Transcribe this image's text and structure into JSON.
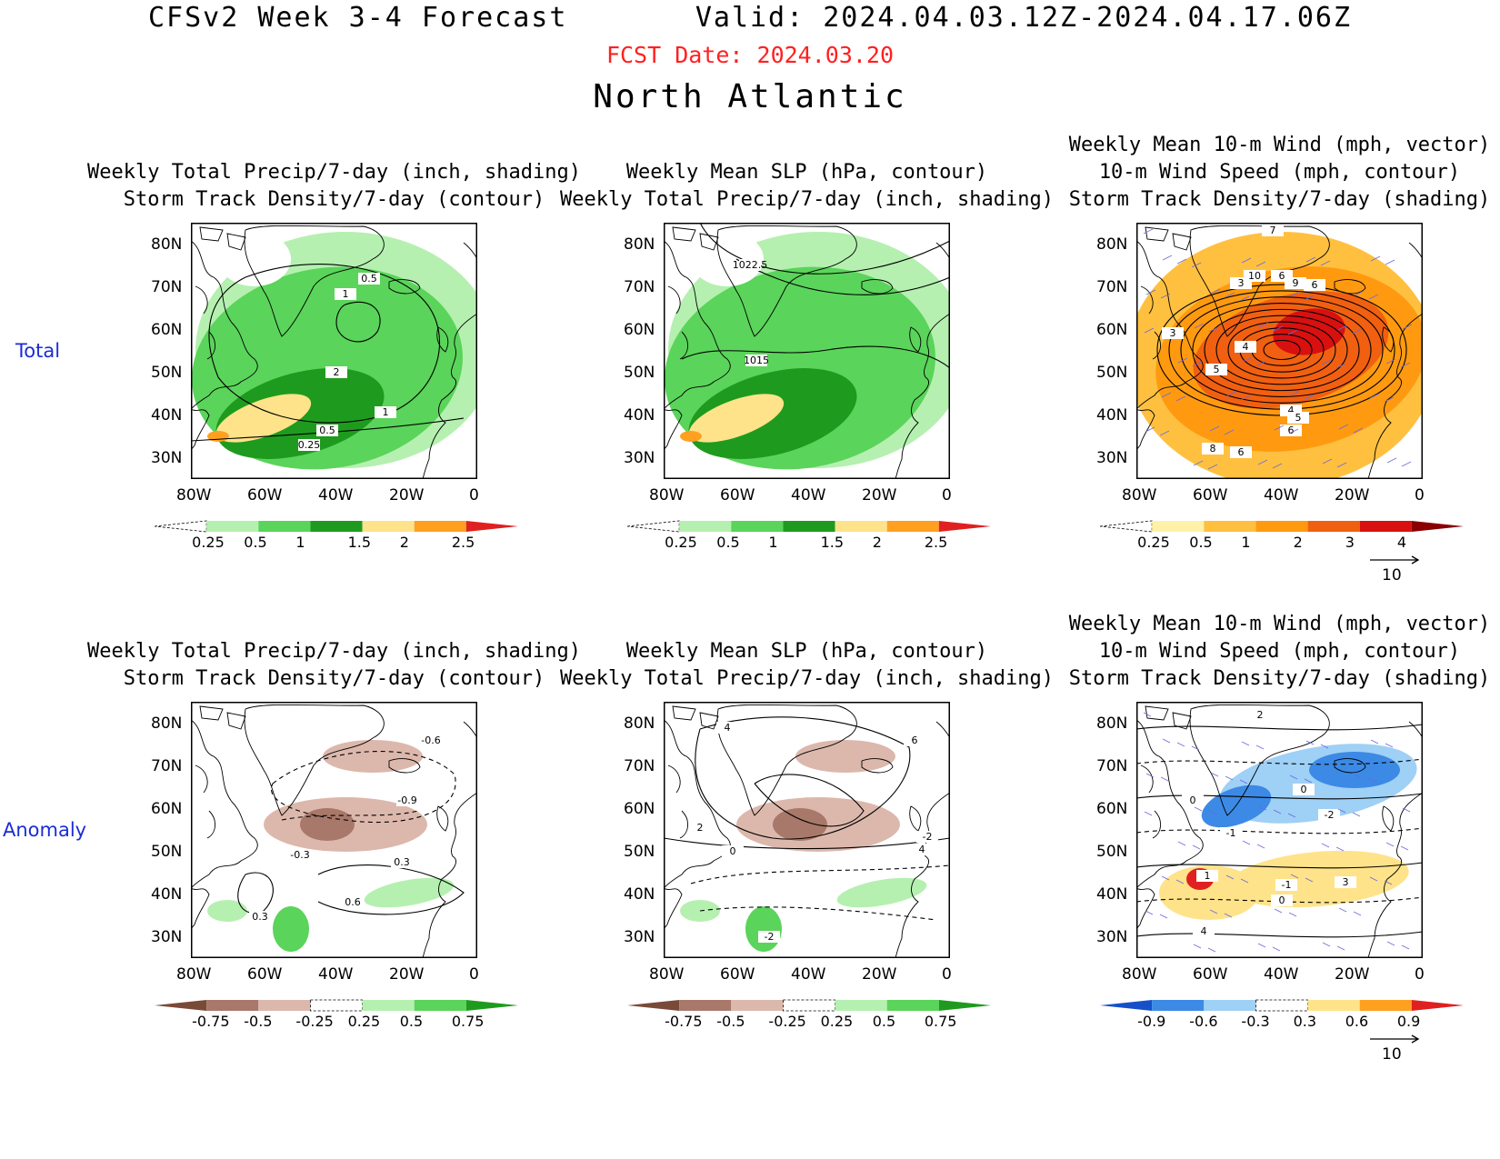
{
  "header": {
    "line1": "CFSv2 Week 3-4 Forecast       Valid: 2024.04.03.12Z-2024.04.17.06Z",
    "fcst_date": "FCST Date: 2024.03.20",
    "region": "North Atlantic"
  },
  "rows": [
    {
      "label": "Total"
    },
    {
      "label": "Anomaly"
    }
  ],
  "axes": {
    "lat_labels": [
      "80N",
      "70N",
      "60N",
      "50N",
      "40N",
      "30N"
    ],
    "lon_labels": [
      "80W",
      "60W",
      "40W",
      "20W",
      "0"
    ]
  },
  "panels": [
    {
      "id": "total-precip",
      "title_lines": [
        "Weekly Total Precip/7-day (inch, shading)",
        "Storm Track Density/7-day (contour)"
      ],
      "colorbar": {
        "labels": [
          "0.25",
          "0.5",
          "1",
          "1.5",
          "2",
          "2.5"
        ],
        "colors": [
          "#ffffff",
          "#b5f0b0",
          "#5ad45a",
          "#1e9b1e",
          "#ffe38a",
          "#ffa020",
          "#e02020"
        ]
      },
      "contour_labels": [
        "0.5",
        "1",
        "2",
        "1",
        "0.5",
        "0.25"
      ]
    },
    {
      "id": "total-slp",
      "title_lines": [
        "Weekly Mean SLP (hPa, contour)",
        "Weekly Total Precip/7-day (inch, shading)"
      ],
      "colorbar": {
        "labels": [
          "0.25",
          "0.5",
          "1",
          "1.5",
          "2",
          "2.5"
        ],
        "colors": [
          "#ffffff",
          "#b5f0b0",
          "#5ad45a",
          "#1e9b1e",
          "#ffe38a",
          "#ffa020",
          "#e02020"
        ]
      },
      "contour_labels": [
        "1022.5",
        "1015"
      ]
    },
    {
      "id": "total-wind",
      "title_lines": [
        "Weekly Mean 10-m Wind (mph, vector)",
        "10-m Wind Speed (mph, contour)",
        "Storm Track Density/7-day (shading)"
      ],
      "colorbar": {
        "labels": [
          "0.25",
          "0.5",
          "1",
          "2",
          "3",
          "4"
        ],
        "colors": [
          "#ffffff",
          "#fff2a8",
          "#ffc040",
          "#ff9a10",
          "#f06010",
          "#d81010",
          "#8a0000"
        ]
      },
      "contour_labels": [
        "7",
        "3",
        "10",
        "6",
        "9",
        "6",
        "3",
        "4",
        "5",
        "4",
        "5",
        "6",
        "8",
        "6"
      ],
      "vector_ref": "10"
    },
    {
      "id": "anom-precip",
      "title_lines": [
        "Weekly Total Precip/7-day (inch, shading)",
        "Storm Track Density/7-day (contour)"
      ],
      "colorbar": {
        "labels": [
          "-0.75",
          "-0.5",
          "-0.25",
          "0.25",
          "0.5",
          "0.75"
        ],
        "colors": [
          "#7a4a38",
          "#a8786a",
          "#dcb8ac",
          "#ffffff",
          "#b5f0b0",
          "#5ad45a",
          "#1e9b1e"
        ]
      },
      "contour_labels": [
        "-0.6",
        "-0.9",
        "-0.3",
        "0.3",
        "0.3",
        "0.6"
      ]
    },
    {
      "id": "anom-slp",
      "title_lines": [
        "Weekly Mean SLP (hPa, contour)",
        "Weekly Total Precip/7-day (inch, shading)"
      ],
      "colorbar": {
        "labels": [
          "-0.75",
          "-0.5",
          "-0.25",
          "0.25",
          "0.5",
          "0.75"
        ],
        "colors": [
          "#7a4a38",
          "#a8786a",
          "#dcb8ac",
          "#ffffff",
          "#b5f0b0",
          "#5ad45a",
          "#1e9b1e"
        ]
      },
      "contour_labels": [
        "4",
        "6",
        "2",
        "0",
        "-2",
        "4",
        "-2"
      ]
    },
    {
      "id": "anom-wind",
      "title_lines": [
        "Weekly Mean 10-m Wind (mph, vector)",
        "10-m Wind Speed (mph, contour)",
        "Storm Track Density/7-day (shading)"
      ],
      "colorbar": {
        "labels": [
          "-0.9",
          "-0.6",
          "-0.3",
          "0.3",
          "0.6",
          "0.9"
        ],
        "colors": [
          "#1550c8",
          "#3c8ae6",
          "#9fd0f5",
          "#ffffff",
          "#ffe38a",
          "#ffa020",
          "#e02020"
        ]
      },
      "contour_labels": [
        "2",
        "0",
        "0",
        "-2",
        "-1",
        "1",
        "3",
        "0",
        "-1",
        "4"
      ],
      "vector_ref": "10"
    }
  ]
}
